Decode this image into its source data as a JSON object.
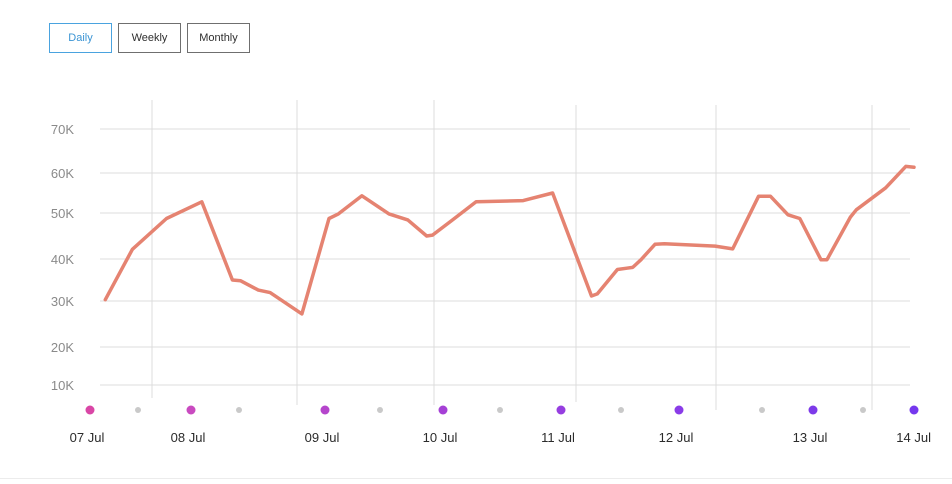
{
  "tabs": [
    {
      "label": "Daily",
      "active": true
    },
    {
      "label": "Weekly",
      "active": false
    },
    {
      "label": "Monthly",
      "active": false
    }
  ],
  "colors": {
    "line": "#e58371",
    "grid": "#dcdcdc",
    "tick_label": "#8a8a8a",
    "date_label": "#2b2b2b",
    "minor_dot": "#c9c9c9",
    "day_dots": [
      "#d946a6",
      "#c94ac0",
      "#b545cc",
      "#a540d6",
      "#963ee0",
      "#8a3ce8",
      "#7d3ae9",
      "#7537ee"
    ]
  },
  "chart_data": {
    "type": "line",
    "title": "",
    "xlabel": "",
    "ylabel": "",
    "y_ticks": [
      {
        "value": 10000,
        "label": "10K"
      },
      {
        "value": 20000,
        "label": "20K"
      },
      {
        "value": 30000,
        "label": "30K"
      },
      {
        "value": 40000,
        "label": "40K"
      },
      {
        "value": 50000,
        "label": "50K"
      },
      {
        "value": 60000,
        "label": "60K"
      },
      {
        "value": 70000,
        "label": "70K"
      }
    ],
    "x_ticks": [
      "07 Jul",
      "08 Jul",
      "09 Jul",
      "10 Jul",
      "11 Jul",
      "12 Jul",
      "13 Jul",
      "14 Jul"
    ],
    "x_range_days": [
      0,
      7
    ],
    "grid": true,
    "series": [
      {
        "points": [
          [
            0.13,
            30300
          ],
          [
            0.36,
            42100
          ],
          [
            0.65,
            48800
          ],
          [
            0.95,
            52800
          ],
          [
            1.21,
            35000
          ],
          [
            1.28,
            34800
          ],
          [
            1.43,
            32600
          ],
          [
            1.53,
            32000
          ],
          [
            1.8,
            27200
          ],
          [
            2.03,
            48800
          ],
          [
            2.11,
            49800
          ],
          [
            2.31,
            54300
          ],
          [
            2.54,
            49800
          ],
          [
            2.7,
            48500
          ],
          [
            2.86,
            45000
          ],
          [
            2.91,
            45200
          ],
          [
            3.08,
            48500
          ],
          [
            3.28,
            52800
          ],
          [
            3.68,
            53100
          ],
          [
            3.93,
            55000
          ],
          [
            4.26,
            31200
          ],
          [
            4.31,
            31700
          ],
          [
            4.48,
            37500
          ],
          [
            4.56,
            37800
          ],
          [
            4.61,
            38000
          ],
          [
            4.68,
            39800
          ],
          [
            4.8,
            43200
          ],
          [
            4.88,
            43300
          ],
          [
            5.31,
            42800
          ],
          [
            5.46,
            42200
          ],
          [
            5.68,
            54200
          ],
          [
            5.78,
            54200
          ],
          [
            5.93,
            49600
          ],
          [
            6.03,
            48800
          ],
          [
            6.21,
            39800
          ],
          [
            6.26,
            39800
          ],
          [
            6.46,
            49100
          ],
          [
            6.51,
            50800
          ],
          [
            6.76,
            56300
          ],
          [
            6.93,
            61500
          ],
          [
            7.0,
            61300
          ]
        ]
      }
    ]
  }
}
